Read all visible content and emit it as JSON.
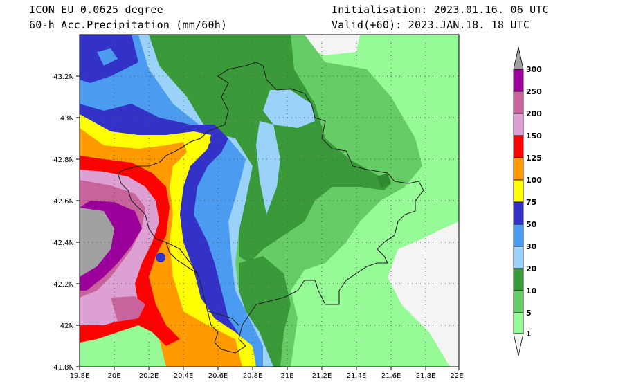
{
  "header": {
    "model": "ICON EU 0.0625 degree",
    "field": "60-h Acc.Precipitation (mm/60h)",
    "initialisation": "Initialisation: 2023.01.16. 06 UTC",
    "valid": "Valid(+60): 2023.JAN.18. 18 UTC"
  },
  "map": {
    "lon_labels": [
      "19.8E",
      "20E",
      "20.2E",
      "20.4E",
      "20.6E",
      "20.8E",
      "21E",
      "21.2E",
      "21.4E",
      "21.6E",
      "21.8E",
      "22E"
    ],
    "lat_labels": [
      "43.2N",
      "43N",
      "42.8N",
      "42.6N",
      "42.4N",
      "42.2N",
      "42N",
      "41.8N"
    ]
  },
  "legend": {
    "levels": [
      "300",
      "250",
      "200",
      "150",
      "125",
      "100",
      "75",
      "50",
      "30",
      "20",
      "10",
      "5",
      "1"
    ],
    "colors": {
      "c0": "#f4f4f4",
      "c1": "#96fa96",
      "c5": "#66cd66",
      "c10": "#3a9a3a",
      "c20": "#9bd2fa",
      "c30": "#4b9bf0",
      "c50": "#3232c8",
      "c75": "#ffff00",
      "c100": "#ff9b00",
      "c125": "#ff0000",
      "c150": "#dca0d2",
      "c200": "#c8649b",
      "c250": "#9b009b",
      "c300": "#a0a0a0"
    }
  }
}
